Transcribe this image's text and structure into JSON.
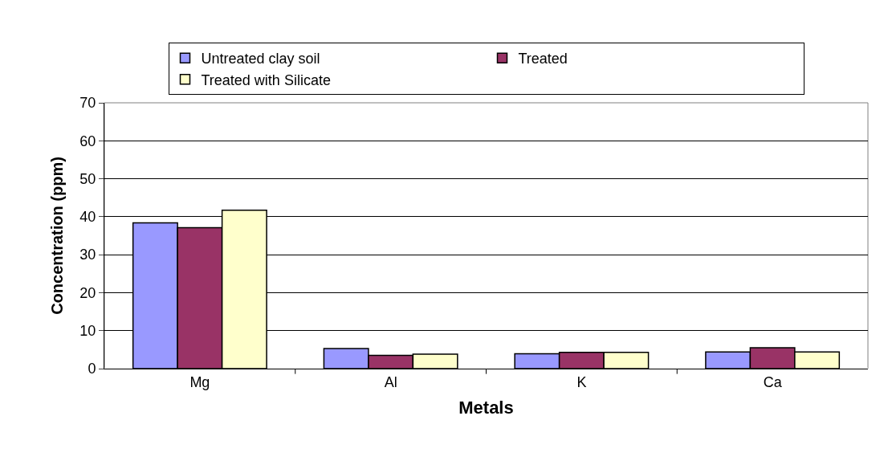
{
  "chart_data": {
    "type": "bar",
    "xlabel": "Metals",
    "ylabel": "Concentration (ppm)",
    "categories": [
      "Mg",
      "Al",
      "K",
      "Ca"
    ],
    "series": [
      {
        "name": "Untreated clay soil",
        "color": "#9999ff",
        "values": [
          38.4,
          5.3,
          3.9,
          4.4
        ]
      },
      {
        "name": "Treated",
        "color": "#993366",
        "values": [
          37.1,
          3.5,
          4.3,
          5.5
        ]
      },
      {
        "name": "Treated with Silicate",
        "color": "#ffffcc",
        "values": [
          41.7,
          3.8,
          4.3,
          4.4
        ]
      }
    ],
    "ylim": [
      0,
      70
    ],
    "yticks": [
      0,
      10,
      20,
      30,
      40,
      50,
      60,
      70
    ],
    "grid": "y",
    "legend": "top"
  }
}
